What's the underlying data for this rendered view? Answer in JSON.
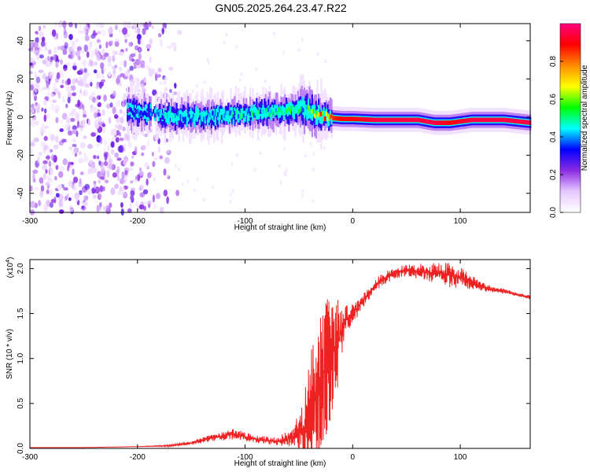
{
  "figure": {
    "title": "GN05.2025.264.23.47.R22",
    "top_xlabel": "Height of straight line (km)",
    "top_ylabel": "Frequency (Hz)",
    "bottom_xlabel": "Height of straight line (km)",
    "bottom_ylabel": "SNR (10 * v/v)",
    "bottom_multiplier": "(x10",
    "bottom_multiplier_exp": "4",
    "bottom_multiplier_close": ")",
    "colorbar_label": "Normalized spectral amplitude"
  },
  "chart_data": [
    {
      "type": "heatmap",
      "title": "GN05.2025.264.23.47.R22",
      "xlabel": "Height of straight line (km)",
      "ylabel": "Frequency (Hz)",
      "xlim": [
        -300,
        165
      ],
      "ylim": [
        -50,
        49
      ],
      "xticks": [
        -300,
        -200,
        -100,
        0,
        100
      ],
      "yticks": [
        -40,
        -20,
        0,
        20,
        40
      ],
      "xtick_labels": [
        "-300",
        "-200",
        "-100",
        "0",
        "100"
      ],
      "ytick_labels": [
        "-40",
        "-20",
        "0",
        "20",
        "40"
      ],
      "colorbar": {
        "label": "Normalized spectral amplitude",
        "range": [
          0,
          1
        ],
        "ticks": [
          0.0,
          0.2,
          0.4,
          0.6,
          0.8
        ],
        "tick_labels": [
          "0.0",
          "0.2",
          "0.4",
          "0.6",
          "0.8"
        ],
        "colors": [
          "#ffffff",
          "#e6c8ff",
          "#8a2be2",
          "#0000ff",
          "#00ffff",
          "#00ff00",
          "#ffff00",
          "#ff8c00",
          "#ff0000",
          "#ff0080"
        ]
      },
      "ridge": {
        "description_x": [
          -210,
          -190,
          -170,
          -150,
          -120,
          -100,
          -80,
          -60,
          -45,
          -35,
          -28,
          -20,
          -10,
          0,
          20,
          40,
          60,
          75,
          90,
          110,
          140,
          165
        ],
        "frequency_hz": [
          3,
          2,
          0.5,
          0,
          1,
          2,
          2.5,
          3,
          5,
          1,
          0.5,
          -0.5,
          -1,
          -1,
          -1.5,
          -1.5,
          -1.5,
          -3,
          -3,
          -1.5,
          -1.5,
          -3
        ],
        "amplitude": [
          0.3,
          0.4,
          0.45,
          0.45,
          0.45,
          0.5,
          0.5,
          0.55,
          0.5,
          0.7,
          0.85,
          0.85,
          0.9,
          0.9,
          0.95,
          0.95,
          0.95,
          0.95,
          0.9,
          0.95,
          0.95,
          0.95
        ]
      },
      "noise_region_x": [
        -300,
        -175
      ]
    },
    {
      "type": "line",
      "xlabel": "Height of straight line (km)",
      "ylabel": "SNR (10 * v/v)",
      "multiplier": "x10^4",
      "xlim": [
        -300,
        165
      ],
      "ylim": [
        0,
        2.1
      ],
      "xticks": [
        -300,
        -200,
        -100,
        0,
        100
      ],
      "yticks": [
        0.0,
        0.5,
        1.0,
        1.5,
        2.0
      ],
      "xtick_labels": [
        "-300",
        "-200",
        "-100",
        "0",
        "100"
      ],
      "ytick_labels": [
        "0.0",
        "0.5",
        "1.0",
        "1.5",
        "2.0"
      ],
      "series": [
        {
          "name": "SNR",
          "color": "#ee2222",
          "x": [
            -300,
            -250,
            -200,
            -170,
            -150,
            -130,
            -110,
            -90,
            -70,
            -55,
            -45,
            -40,
            -35,
            -30,
            -25,
            -20,
            -15,
            -10,
            -5,
            0,
            10,
            20,
            30,
            40,
            50,
            60,
            70,
            80,
            90,
            100,
            110,
            120,
            130,
            140,
            150,
            165
          ],
          "values": [
            0.01,
            0.01,
            0.02,
            0.03,
            0.06,
            0.12,
            0.16,
            0.1,
            0.08,
            0.12,
            0.22,
            0.3,
            0.55,
            0.8,
            0.9,
            1.0,
            1.15,
            1.3,
            1.45,
            1.5,
            1.65,
            1.8,
            1.9,
            1.95,
            1.98,
            1.97,
            1.96,
            1.95,
            1.93,
            1.9,
            1.85,
            1.8,
            1.77,
            1.75,
            1.72,
            1.68
          ],
          "spread": [
            0,
            0,
            0,
            0.01,
            0.02,
            0.04,
            0.06,
            0.04,
            0.05,
            0.1,
            0.4,
            0.7,
            0.9,
            0.9,
            0.8,
            0.7,
            0.55,
            0.3,
            0.15,
            0.12,
            0.08,
            0.08,
            0.07,
            0.06,
            0.07,
            0.08,
            0.1,
            0.12,
            0.14,
            0.12,
            0.08,
            0.05,
            0.04,
            0.03,
            0.02,
            0.02
          ]
        }
      ]
    }
  ]
}
